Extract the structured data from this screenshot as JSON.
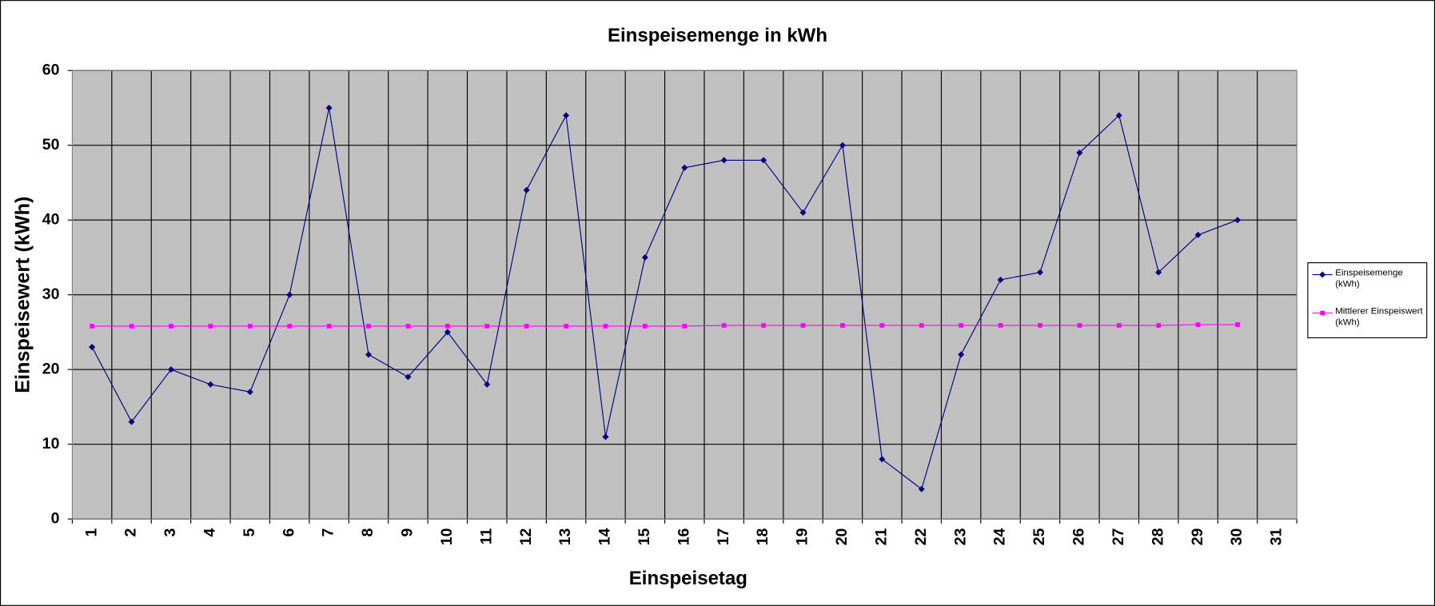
{
  "chart_data": {
    "type": "line",
    "title": "Einspeisemenge in kWh",
    "x_label": "Einspeisetag",
    "y_label": "Einspeisewert  (kWh)",
    "categories": [
      "1",
      "2",
      "3",
      "4",
      "5",
      "6",
      "7",
      "8",
      "9",
      "10",
      "11",
      "12",
      "13",
      "14",
      "15",
      "16",
      "17",
      "18",
      "19",
      "20",
      "21",
      "22",
      "23",
      "24",
      "25",
      "26",
      "27",
      "28",
      "29",
      "30",
      "31"
    ],
    "series": [
      {
        "name": "Einspeisemenge (kWh)",
        "color": "#000080",
        "marker": "diamond",
        "values": [
          23,
          13,
          20,
          18,
          17,
          30,
          55,
          22,
          19,
          25,
          18,
          44,
          54,
          11,
          35,
          47,
          48,
          48,
          41,
          50,
          8,
          4,
          22,
          32,
          33,
          49,
          54,
          33,
          38,
          40,
          null
        ]
      },
      {
        "name": "Mittlerer Einspeiswert (kWh)",
        "color": "#ff00ff",
        "marker": "square",
        "values": [
          25.8,
          25.8,
          25.8,
          25.8,
          25.8,
          25.8,
          25.8,
          25.8,
          25.8,
          25.8,
          25.8,
          25.8,
          25.8,
          25.8,
          25.8,
          25.8,
          25.9,
          25.9,
          25.9,
          25.9,
          25.9,
          25.9,
          25.9,
          25.9,
          25.9,
          25.9,
          25.9,
          25.9,
          26.0,
          26.0,
          null
        ]
      }
    ],
    "ylim": [
      0,
      60
    ],
    "yticks": [
      0,
      10,
      20,
      30,
      40,
      50,
      60
    ],
    "grid": true,
    "legend": "right"
  }
}
